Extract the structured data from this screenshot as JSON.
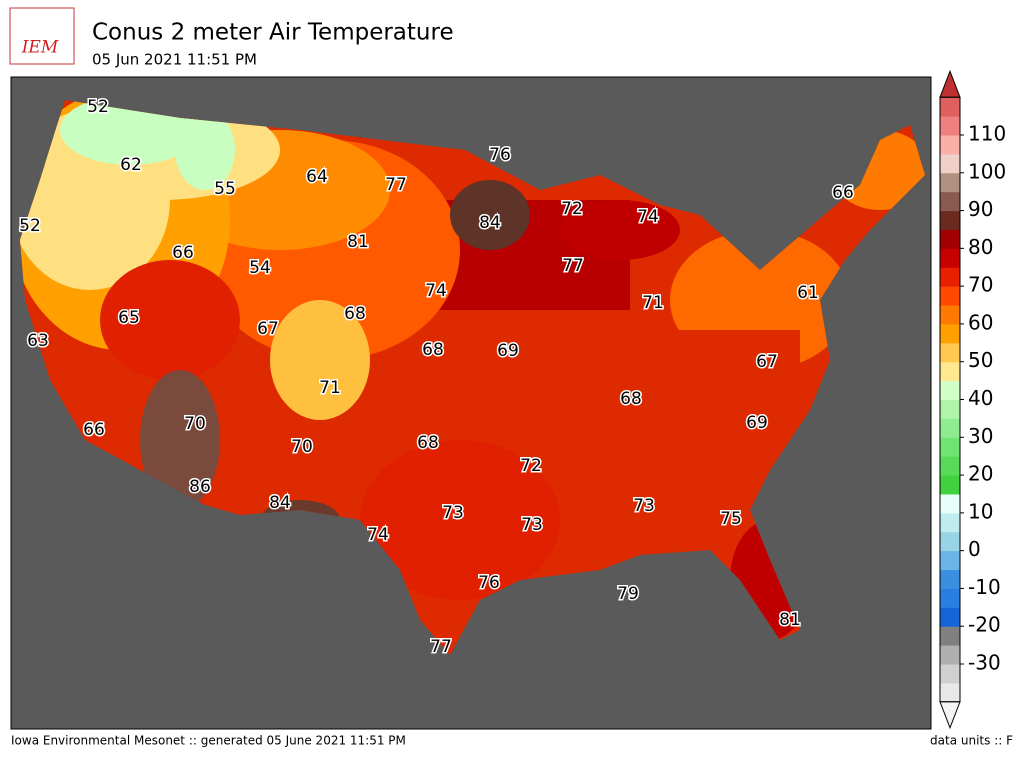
{
  "header": {
    "logo_text": "IEM",
    "title": "Conus 2 meter Air Temperature",
    "subtitle": "05 Jun 2021 11:51 PM"
  },
  "map_labels": [
    52,
    62,
    55,
    64,
    77,
    76,
    84,
    72,
    74,
    66,
    52,
    66,
    81,
    54,
    77,
    74,
    71,
    61,
    65,
    67,
    68,
    63,
    68,
    69,
    67,
    71,
    68,
    69,
    70,
    66,
    70,
    68,
    72,
    86,
    84,
    73,
    75,
    74,
    73,
    73,
    76,
    79,
    81,
    77
  ],
  "colorbar": {
    "ticks": [
      -30,
      -20,
      -10,
      0,
      10,
      20,
      30,
      40,
      50,
      60,
      70,
      80,
      90,
      100,
      110
    ]
  },
  "footer": {
    "left": "Iowa Environmental Mesonet :: generated 05 June 2021 11:51 PM",
    "right": "data units :: F"
  }
}
